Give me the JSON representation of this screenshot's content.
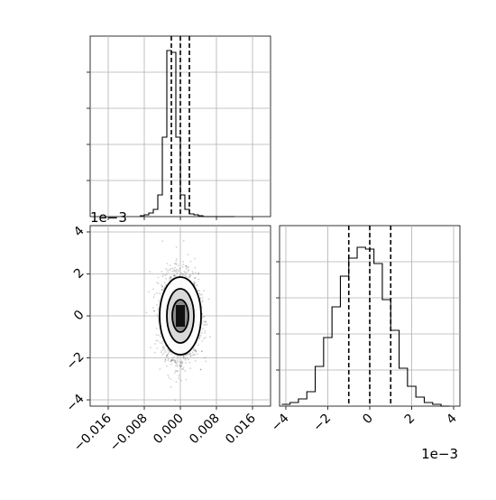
{
  "chart_data": [
    {
      "type": "histogram",
      "panel": "marginal-x",
      "bin_edges": [
        -0.009,
        -0.008,
        -0.007,
        -0.006,
        -0.005,
        -0.004,
        -0.003,
        -0.002,
        -0.001,
        0.0,
        0.001,
        0.002,
        0.003,
        0.004,
        0.005,
        0.006,
        0.007,
        0.008,
        0.009,
        0.01,
        0.011,
        0.012
      ],
      "counts": [
        0.005,
        0.01,
        0.02,
        0.04,
        0.12,
        0.44,
        0.92,
        0.91,
        0.44,
        0.12,
        0.04,
        0.015,
        0.01,
        0.005,
        0.0,
        0.0,
        0.0,
        0.0,
        0.0,
        0.0,
        0.0
      ],
      "quantile_lines": [
        -0.002,
        0.0,
        0.002
      ],
      "xlim": [
        -0.02,
        0.02
      ],
      "xticks": [
        -0.016,
        -0.008,
        0.0,
        0.008,
        0.016
      ],
      "ylim": [
        0,
        1.0
      ],
      "grid": true
    },
    {
      "type": "scatter",
      "panel": "joint",
      "description_values": "2D density of samples with contours",
      "center": [
        0.0,
        0.0
      ],
      "std": [
        0.002,
        0.001
      ],
      "xlim": [
        -0.02,
        0.02
      ],
      "ylim": [
        -0.0043,
        0.0043
      ],
      "xticks": [
        -0.016,
        -0.008,
        0.0,
        0.008,
        0.016
      ],
      "xtick_labels": [
        "−0.016",
        "−0.008",
        "0.000",
        "0.008",
        "0.016"
      ],
      "yticks": [
        -0.004,
        -0.002,
        0.0,
        0.002,
        0.004
      ],
      "ytick_labels": [
        "−4",
        "−2",
        "0",
        "2",
        "4"
      ],
      "y_offset_label": "1e−3",
      "grid": true
    },
    {
      "type": "histogram",
      "panel": "marginal-y",
      "bin_edges": [
        -0.0042,
        -0.0038,
        -0.0034,
        -0.003,
        -0.0026,
        -0.0022,
        -0.0018,
        -0.0014,
        -0.001,
        -0.0006,
        -0.0002,
        0.0002,
        0.0006,
        0.001,
        0.0014,
        0.0018,
        0.0022,
        0.0026,
        0.003,
        0.0034,
        0.0038
      ],
      "counts": [
        0.01,
        0.02,
        0.04,
        0.08,
        0.22,
        0.38,
        0.55,
        0.72,
        0.82,
        0.88,
        0.87,
        0.79,
        0.59,
        0.42,
        0.21,
        0.11,
        0.05,
        0.02,
        0.01,
        0.0
      ],
      "quantile_lines": [
        -0.001,
        0.0,
        0.001
      ],
      "xlim": [
        -0.0043,
        0.0043
      ],
      "xticks": [
        -0.004,
        -0.002,
        0.0,
        0.002,
        0.004
      ],
      "xtick_labels": [
        "−4",
        "−2",
        "0",
        "2",
        "4"
      ],
      "x_offset_label": "1e−3",
      "ylim": [
        0,
        1.0
      ],
      "grid": true
    }
  ]
}
